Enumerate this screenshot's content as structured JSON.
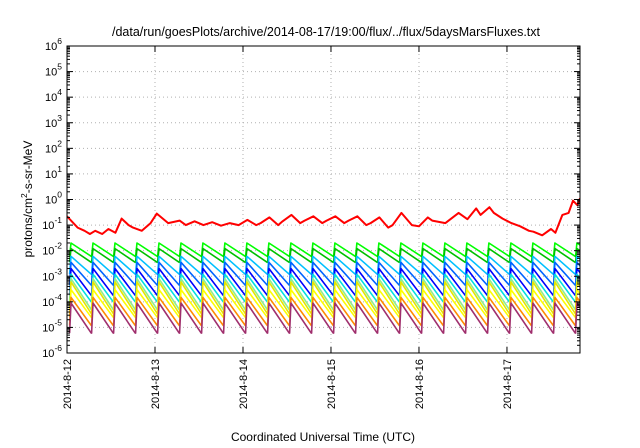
{
  "chart_data": {
    "type": "line",
    "title": "/data/run/goesPlots/archive/2014-08-17/19:00/flux/../flux/5daysMarsFluxes.txt",
    "xlabel": "Coordinated Universal Time (UTC)",
    "ylabel_parts": [
      "protons/cm",
      "2",
      "-s-sr-MeV"
    ],
    "yscale": "log",
    "ylim": [
      "1e-6",
      "1e6"
    ],
    "xlim": [
      "2014-08-12T00:00",
      "2014-08-17T20:00"
    ],
    "grid": true,
    "y_ticks": [
      {
        "base": "10",
        "exp": "-6"
      },
      {
        "base": "10",
        "exp": "-5"
      },
      {
        "base": "10",
        "exp": "-4"
      },
      {
        "base": "10",
        "exp": "-3"
      },
      {
        "base": "10",
        "exp": "-2"
      },
      {
        "base": "10",
        "exp": "-1"
      },
      {
        "base": "10",
        "exp": "0"
      },
      {
        "base": "10",
        "exp": "1"
      },
      {
        "base": "10",
        "exp": "2"
      },
      {
        "base": "10",
        "exp": "3"
      },
      {
        "base": "10",
        "exp": "4"
      },
      {
        "base": "10",
        "exp": "5"
      },
      {
        "base": "10",
        "exp": "6"
      }
    ],
    "y_tick_values": [
      -6,
      -5,
      -4,
      -3,
      -2,
      -1,
      0,
      1,
      2,
      3,
      4,
      5,
      6
    ],
    "x_ticks": [
      "2014-8-12",
      "2014-8-13",
      "2014-8-14",
      "2014-8-15",
      "2014-8-16",
      "2014-8-17"
    ],
    "x_tick_days": [
      0,
      1,
      2,
      3,
      4,
      5
    ],
    "x_max_days": 5.83,
    "sawtooth_period_days": 0.25,
    "series": [
      {
        "color": "#ff0000",
        "x": [
          0,
          0.12,
          0.2,
          0.26,
          0.32,
          0.4,
          0.47,
          0.55,
          0.62,
          0.7,
          0.75,
          0.85,
          0.95,
          1.02,
          1.15,
          1.28,
          1.35,
          1.45,
          1.55,
          1.65,
          1.75,
          1.85,
          1.95,
          2.05,
          2.15,
          2.2,
          2.3,
          2.4,
          2.45,
          2.55,
          2.65,
          2.7,
          2.8,
          2.9,
          2.95,
          3.05,
          3.15,
          3.2,
          3.3,
          3.4,
          3.45,
          3.55,
          3.65,
          3.7,
          3.8,
          3.92,
          4.0,
          4.1,
          4.15,
          4.3,
          4.45,
          4.55,
          4.65,
          4.7,
          4.8,
          4.85,
          4.95,
          5.05,
          5.15,
          5.25,
          5.3,
          5.4,
          5.5,
          5.55,
          5.63,
          5.7,
          5.75,
          5.8,
          5.83
        ],
        "y": [
          0.22,
          0.08,
          0.06,
          0.045,
          0.06,
          0.045,
          0.07,
          0.05,
          0.18,
          0.1,
          0.08,
          0.06,
          0.12,
          0.28,
          0.12,
          0.15,
          0.1,
          0.14,
          0.1,
          0.13,
          0.095,
          0.12,
          0.1,
          0.16,
          0.1,
          0.12,
          0.2,
          0.1,
          0.14,
          0.25,
          0.12,
          0.15,
          0.22,
          0.12,
          0.15,
          0.22,
          0.12,
          0.15,
          0.22,
          0.1,
          0.12,
          0.2,
          0.08,
          0.1,
          0.3,
          0.1,
          0.09,
          0.2,
          0.15,
          0.12,
          0.3,
          0.17,
          0.45,
          0.25,
          0.5,
          0.3,
          0.18,
          0.12,
          0.09,
          0.06,
          0.055,
          0.04,
          0.07,
          0.05,
          0.25,
          0.3,
          0.9,
          0.6,
          1.1
        ]
      },
      {
        "color": "#00ff00",
        "peak": 0.02,
        "trough": 0.006
      },
      {
        "color": "#00c000",
        "peak": 0.012,
        "trough": 0.0035
      },
      {
        "color": "#00c0ff",
        "peak": 0.006,
        "trough": 0.0012
      },
      {
        "color": "#0064ff",
        "peak": 0.0035,
        "trough": 0.00045
      },
      {
        "color": "#0000ff",
        "peak": 0.002,
        "trough": 0.00018
      },
      {
        "color": "#00e0e0",
        "peak": 0.0012,
        "trough": 0.0001
      },
      {
        "color": "#90ee90",
        "peak": 0.0008,
        "trough": 5e-05
      },
      {
        "color": "#e6e600",
        "peak": 0.0006,
        "trough": 3.5e-05
      },
      {
        "color": "#ffff00",
        "peak": 0.0003,
        "trough": 2.5e-05
      },
      {
        "color": "#ff8c00",
        "peak": 0.00015,
        "trough": 1.2e-05
      },
      {
        "color": "#a0306e",
        "peak": 9e-05,
        "trough": 6e-06
      }
    ]
  }
}
